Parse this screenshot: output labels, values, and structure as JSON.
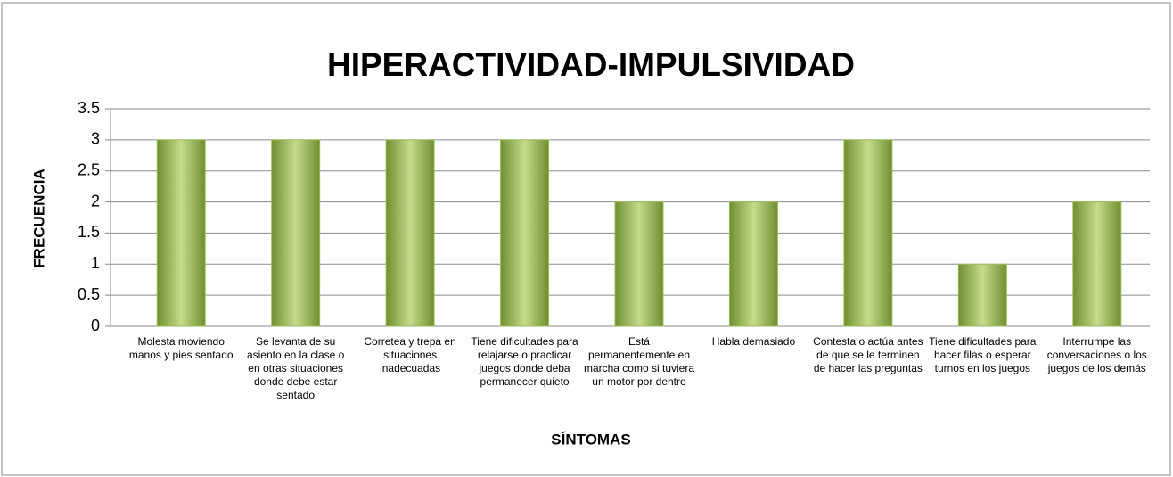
{
  "chart_data": {
    "type": "bar",
    "title": "HIPERACTIVIDAD-IMPULSIVIDAD",
    "x_label": "SÍNTOMAS",
    "y_label": "FRECUENCIA",
    "categories": [
      "Molesta moviendo manos y pies sentado",
      "Se levanta de su asiento en la clase o en otras situaciones donde debe estar sentado",
      "Corretea y trepa en situaciones inadecuadas",
      "Tiene dificultades para relajarse o practicar juegos donde deba permanecer quieto",
      "Está permanentemente en marcha como si tuviera un motor por dentro",
      "Habla demasiado",
      "Contesta o actúa antes de que se le terminen de hacer las preguntas",
      "Tiene dificultades para hacer filas o esperar turnos en los juegos",
      "Interrumpe las conversaciones o los juegos de los demás"
    ],
    "values": [
      3,
      3,
      3,
      3,
      2,
      2,
      3,
      1,
      2
    ],
    "color": "#9bbb59",
    "ylim": [
      0,
      3.5
    ],
    "yticks": [
      0,
      0.5,
      1,
      1.5,
      2,
      2.5,
      3,
      3.5
    ],
    "grid": true
  }
}
